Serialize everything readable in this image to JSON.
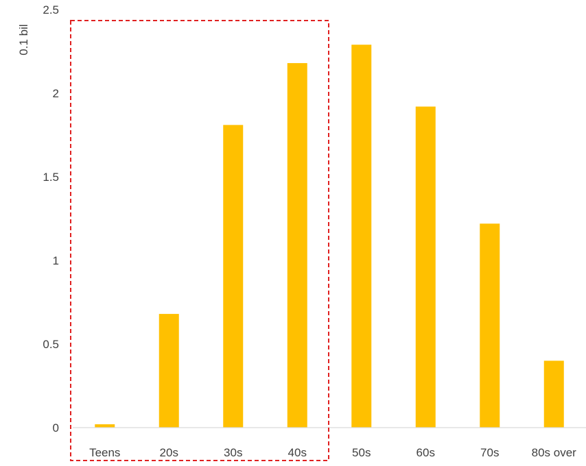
{
  "chart_data": {
    "type": "bar",
    "title": "",
    "xlabel": "",
    "ylabel": "0.1 bil",
    "categories": [
      "Teens",
      "20s",
      "30s",
      "40s",
      "50s",
      "60s",
      "70s",
      "80s over"
    ],
    "values": [
      0.02,
      0.68,
      1.81,
      2.18,
      2.29,
      1.92,
      1.22,
      0.4
    ],
    "ylim": [
      0,
      2.5
    ],
    "yticks": [
      "0",
      "0.5",
      "1",
      "1.5",
      "2",
      "2.5"
    ],
    "grid": false,
    "legend": "none",
    "highlight": {
      "categories": [
        "Teens",
        "20s",
        "30s",
        "40s"
      ],
      "style": "dashed-box"
    },
    "colors": {
      "bar": "#FFC000",
      "highlight_border": "#E02020",
      "axis": "#D9D9D9",
      "text": "#404040"
    }
  }
}
